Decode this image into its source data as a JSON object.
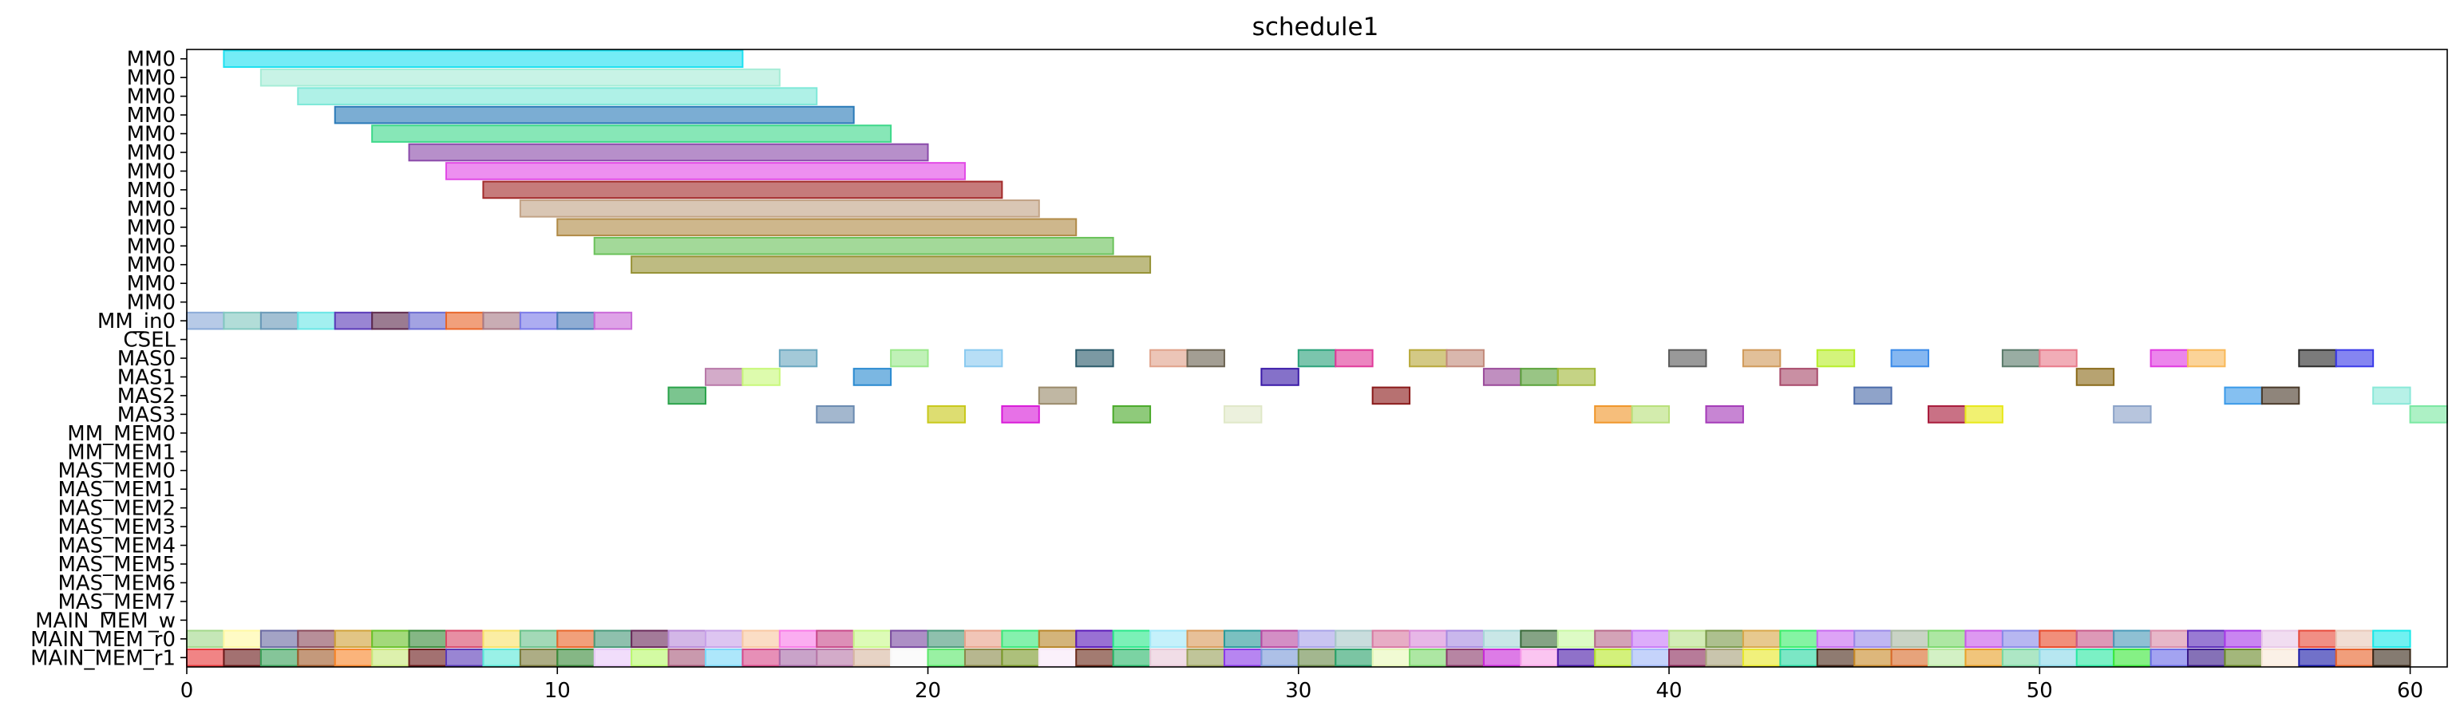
{
  "chart_data": {
    "type": "gantt",
    "title": "schedule1",
    "xlabel": "",
    "ylabel": "",
    "xlim": [
      0,
      61
    ],
    "xticks": [
      0,
      10,
      20,
      30,
      40,
      50,
      60
    ],
    "grid": false,
    "rows": [
      "MM0",
      "MM0",
      "MM0",
      "MM0",
      "MM0",
      "MM0",
      "MM0",
      "MM0",
      "MM0",
      "MM0",
      "MM0",
      "MM0",
      "MM0",
      "MM0",
      "MM_in0",
      "CSEL",
      "MAS0",
      "MAS1",
      "MAS2",
      "MAS3",
      "MM_MEM0",
      "MM_MEM1",
      "MAS_MEM0",
      "MAS_MEM1",
      "MAS_MEM2",
      "MAS_MEM3",
      "MAS_MEM4",
      "MAS_MEM5",
      "MAS_MEM6",
      "MAS_MEM7",
      "MAIN_MEM_w",
      "MAIN_MEM_r0",
      "MAIN_MEM_r1"
    ],
    "mm_tasks": [
      {
        "row": 0,
        "start": 1,
        "end": 15,
        "color": "#1ee0f0"
      },
      {
        "row": 1,
        "start": 2,
        "end": 16,
        "color": "#a6ecd6"
      },
      {
        "row": 2,
        "start": 3,
        "end": 17,
        "color": "#7ee8d8"
      },
      {
        "row": 3,
        "start": 4,
        "end": 18,
        "color": "#2a7ab8"
      },
      {
        "row": 4,
        "start": 5,
        "end": 19,
        "color": "#3ed88a"
      },
      {
        "row": 5,
        "start": 6,
        "end": 20,
        "color": "#8a4aaa"
      },
      {
        "row": 6,
        "start": 7,
        "end": 21,
        "color": "#e24ae6"
      },
      {
        "row": 7,
        "start": 8,
        "end": 22,
        "color": "#a32a2a"
      },
      {
        "row": 8,
        "start": 9,
        "end": 23,
        "color": "#c2a386"
      },
      {
        "row": 9,
        "start": 10,
        "end": 24,
        "color": "#b08a46"
      },
      {
        "row": 10,
        "start": 11,
        "end": 25,
        "color": "#6ac25a"
      },
      {
        "row": 11,
        "start": 12,
        "end": 26,
        "color": "#969236"
      }
    ],
    "mm_in0_colors": [
      "#8aaad8",
      "#82c8c0",
      "#6a9ab8",
      "#6ae6e6",
      "#5a3ab8",
      "#5e2a4e",
      "#6a6ad0",
      "#e8662a",
      "#a87a86",
      "#7a7ae8",
      "#4a7ab8",
      "#ca6ad8"
    ],
    "mas_tasks": [
      {
        "row": 16,
        "start": 16,
        "end": 17,
        "color": "#6aa8c0"
      },
      {
        "row": 16,
        "start": 19,
        "end": 20,
        "color": "#9ae88a"
      },
      {
        "row": 16,
        "start": 21,
        "end": 22,
        "color": "#8acaf0"
      },
      {
        "row": 16,
        "start": 24,
        "end": 25,
        "color": "#2a5a6a"
      },
      {
        "row": 16,
        "start": 26,
        "end": 27,
        "color": "#e0a28a"
      },
      {
        "row": 16,
        "start": 27,
        "end": 28,
        "color": "#6a6250"
      },
      {
        "row": 16,
        "start": 30,
        "end": 31,
        "color": "#2aa27a"
      },
      {
        "row": 16,
        "start": 31,
        "end": 32,
        "color": "#e03a9a"
      },
      {
        "row": 16,
        "start": 33,
        "end": 34,
        "color": "#b8a83a"
      },
      {
        "row": 16,
        "start": 34,
        "end": 35,
        "color": "#c28a7a"
      },
      {
        "row": 16,
        "start": 40,
        "end": 41,
        "color": "#5a5a5a"
      },
      {
        "row": 16,
        "start": 42,
        "end": 43,
        "color": "#d09a5a"
      },
      {
        "row": 16,
        "start": 44,
        "end": 45,
        "color": "#b8ee2a"
      },
      {
        "row": 16,
        "start": 46,
        "end": 47,
        "color": "#3a8ae8"
      },
      {
        "row": 16,
        "start": 49,
        "end": 50,
        "color": "#5a7a6a"
      },
      {
        "row": 16,
        "start": 50,
        "end": 51,
        "color": "#e87a8a"
      },
      {
        "row": 16,
        "start": 53,
        "end": 54,
        "color": "#e03ae0"
      },
      {
        "row": 16,
        "start": 54,
        "end": 55,
        "color": "#f8b858"
      },
      {
        "row": 16,
        "start": 57,
        "end": 58,
        "color": "#2a2a2a"
      },
      {
        "row": 16,
        "start": 58,
        "end": 59,
        "color": "#3a3ae8"
      },
      {
        "row": 17,
        "start": 14,
        "end": 15,
        "color": "#b878a8"
      },
      {
        "row": 17,
        "start": 15,
        "end": 16,
        "color": "#c8f87a"
      },
      {
        "row": 17,
        "start": 18,
        "end": 19,
        "color": "#2a8ad0"
      },
      {
        "row": 17,
        "start": 29,
        "end": 30,
        "color": "#3a1aa8"
      },
      {
        "row": 17,
        "start": 35,
        "end": 36,
        "color": "#9a4a9a"
      },
      {
        "row": 17,
        "start": 36,
        "end": 37,
        "color": "#5aa23a"
      },
      {
        "row": 17,
        "start": 37,
        "end": 38,
        "color": "#a2b83a"
      },
      {
        "row": 17,
        "start": 43,
        "end": 44,
        "color": "#a84a6a"
      },
      {
        "row": 17,
        "start": 51,
        "end": 52,
        "color": "#8a6a1a"
      },
      {
        "row": 18,
        "start": 13,
        "end": 14,
        "color": "#2aa24a"
      },
      {
        "row": 18,
        "start": 23,
        "end": 24,
        "color": "#9a8a6a"
      },
      {
        "row": 18,
        "start": 32,
        "end": 33,
        "color": "#8a1a1a"
      },
      {
        "row": 18,
        "start": 45,
        "end": 46,
        "color": "#4a6aa8"
      },
      {
        "row": 18,
        "start": 55,
        "end": 56,
        "color": "#3a9ae8"
      },
      {
        "row": 18,
        "start": 56,
        "end": 57,
        "color": "#4a3a2a"
      },
      {
        "row": 18,
        "start": 59,
        "end": 60,
        "color": "#8ae8d8"
      },
      {
        "row": 19,
        "start": 17,
        "end": 18,
        "color": "#6a8ab0"
      },
      {
        "row": 19,
        "start": 20,
        "end": 21,
        "color": "#c8c81a"
      },
      {
        "row": 19,
        "start": 22,
        "end": 23,
        "color": "#d81ad8"
      },
      {
        "row": 19,
        "start": 25,
        "end": 26,
        "color": "#4aaa2a"
      },
      {
        "row": 19,
        "start": 28,
        "end": 29,
        "color": "#e0e8c8"
      },
      {
        "row": 19,
        "start": 38,
        "end": 39,
        "color": "#f0962a"
      },
      {
        "row": 19,
        "start": 39,
        "end": 40,
        "color": "#b8e07a"
      },
      {
        "row": 19,
        "start": 41,
        "end": 42,
        "color": "#a43ab8"
      },
      {
        "row": 19,
        "start": 47,
        "end": 48,
        "color": "#a81a3a"
      },
      {
        "row": 19,
        "start": 48,
        "end": 49,
        "color": "#e8e81a"
      },
      {
        "row": 19,
        "start": 52,
        "end": 53,
        "color": "#8aa2c8"
      },
      {
        "row": 19,
        "start": 60,
        "end": 61,
        "color": "#7ae8a2"
      }
    ],
    "main_mem_r0_colors": [
      "#a2d88a",
      "#fff8a2",
      "#6a6aa2",
      "#8a4a5a",
      "#d0a23a",
      "#6ac22a",
      "#3a8a3a",
      "#d84a6a",
      "#f8e26a",
      "#6ac28a",
      "#e8662a",
      "#4a9a7a",
      "#6a2a5a",
      "#b88ad8",
      "#c8a2e8",
      "#f8c8a2",
      "#f87ae8",
      "#c84a8a",
      "#c8f88a",
      "#7a4aa2",
      "#4a9a7a",
      "#e8a28a",
      "#3ae87a",
      "#b8862a",
      "#5a1ab8",
      "#2ae88a",
      "#a2e8f8",
      "#d89a5a",
      "#2a9a9a",
      "#b84aa2",
      "#a8a2e8",
      "#a8c8c8",
      "#d87aa2",
      "#d88ad8",
      "#a88ae0",
      "#a8d8d8",
      "#3a6a3a",
      "#c8f8a2",
      "#b86a8a",
      "#c87af8",
      "#b8e08a",
      "#7a9a4a",
      "#d8a84a",
      "#3aee6a",
      "#c86af0",
      "#9a8ae8",
      "#a8b8a2",
      "#7ad86a",
      "#c85ae8",
      "#8a8ae8",
      "#e84a2a",
      "#c85a8a",
      "#4a9ab8",
      "#d88aa8",
      "#5a2ab8",
      "#a83ae8",
      "#e8c8e8",
      "#e84a3a",
      "#e8c8b8",
      "#1ae8e8"
    ],
    "main_mem_r1_colors": [
      "#e8383a",
      "#6a1a1a",
      "#3aa25a",
      "#a05a2a",
      "#f8862a",
      "#c8e87a",
      "#6a1a1a",
      "#5a3ab8",
      "#5ae8d8",
      "#7a7a3a",
      "#3a8a3a",
      "#e8c8f8",
      "#b8f86a",
      "#a85a7a",
      "#7ad8f8",
      "#d84a8a",
      "#a86aa8",
      "#b878a8",
      "#d8b8a2",
      "#f8f8f8",
      "#5ae86a",
      "#8a8a4a",
      "#7a9a2a",
      "#f8e8f8",
      "#6a2a1a",
      "#2ab86a",
      "#e8c8d8",
      "#9aa25a",
      "#8a3ae8",
      "#7a9ad8",
      "#6a8a4a",
      "#2aa26a",
      "#e8f8b8",
      "#7ad86a",
      "#8a3a6a",
      "#c82ad8",
      "#f8a2e8",
      "#4a1aa8",
      "#b8e82a",
      "#a2b8f8",
      "#8a2a5a",
      "#a8a27a",
      "#e8e82a",
      "#2ad8a2",
      "#4a2a1a",
      "#c88a2a",
      "#d86a2a",
      "#b8e8a2",
      "#e8a22a",
      "#7ad8a2",
      "#8ad8e8",
      "#2ae8a2",
      "#3ae83a",
      "#6a6ae8",
      "#3a1a8a",
      "#6a8a2a",
      "#f8e8d8",
      "#1a1aa8",
      "#e8622a",
      "#3a2a1a"
    ]
  }
}
